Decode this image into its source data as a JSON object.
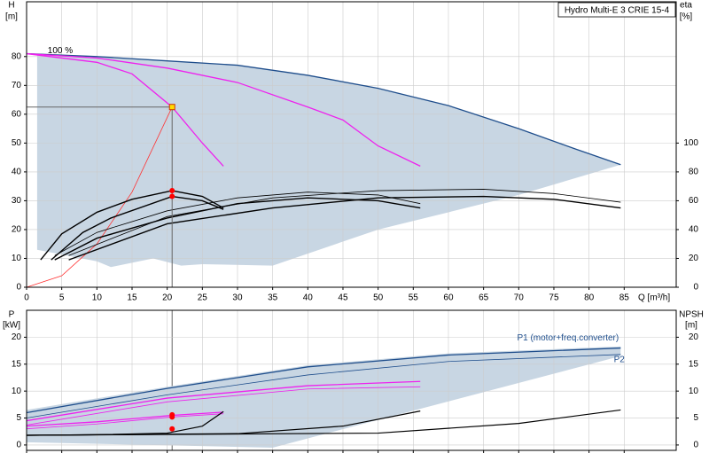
{
  "chart_data": [
    {
      "type": "line",
      "title": "Hydro Multi-E 3 CRIE 15-4",
      "ylabel": "H",
      "yunit": "[m]",
      "y2label": "eta",
      "y2unit": "[%]",
      "xlabel": "Q [m³/h]",
      "xlim": [
        0,
        92.4
      ],
      "ylim": [
        0,
        99
      ],
      "y2lim": [
        0,
        198
      ],
      "xticks": [
        0,
        5,
        10,
        15,
        20,
        25,
        30,
        35,
        40,
        45,
        50,
        55,
        60,
        65,
        70,
        75,
        80,
        85
      ],
      "yticks": [
        0,
        10,
        20,
        30,
        40,
        50,
        60,
        70,
        80
      ],
      "y2ticks": [
        0,
        20,
        40,
        60,
        80,
        100
      ],
      "grid": true,
      "xtick_labels": true,
      "annotations": [
        {
          "text": "100 %",
          "x": 3,
          "y": 82
        }
      ],
      "regions": [
        {
          "color": "#c8d6e3",
          "x": [
            1.5,
            10,
            20,
            30,
            40,
            50,
            60,
            70,
            78,
            84.5,
            70,
            50,
            35,
            25,
            22,
            18,
            12,
            10,
            1.5
          ],
          "values": [
            81,
            80,
            78.5,
            77,
            73.5,
            69,
            63,
            55,
            48,
            42.5,
            32,
            20,
            7.5,
            8,
            7.5,
            10,
            7,
            9,
            13
          ]
        }
      ],
      "series": [
        {
          "color": "#1f4e8c",
          "linewidth": 1.3,
          "x": [
            0,
            10,
            20,
            30,
            40,
            50,
            60,
            70,
            78,
            84.5
          ],
          "values": [
            81,
            80,
            78.5,
            77,
            73.5,
            69,
            63,
            55,
            48,
            42.5
          ]
        },
        {
          "color": "#ee22ee",
          "linewidth": 1.3,
          "x": [
            0,
            10,
            15,
            20.7,
            25,
            28
          ],
          "values": [
            81,
            78,
            74,
            62.5,
            50,
            42
          ]
        },
        {
          "color": "#ee22ee",
          "linewidth": 1.3,
          "x": [
            0,
            10,
            20,
            30,
            40,
            45,
            50,
            56
          ],
          "values": [
            81,
            79.5,
            76,
            71,
            62.5,
            58,
            49,
            42
          ]
        },
        {
          "color": "#ff3333",
          "linewidth": 0.8,
          "x": [
            0,
            5,
            10,
            15,
            20.7
          ],
          "values": [
            0,
            4,
            15,
            33,
            62.5
          ]
        },
        {
          "color": "#000000",
          "linewidth": 1.4,
          "axis": "y2",
          "x": [
            2,
            5,
            10,
            15,
            20.7,
            25,
            28
          ],
          "values": [
            19,
            37,
            52,
            61,
            67,
            63,
            55
          ]
        },
        {
          "color": "#000000",
          "linewidth": 1.4,
          "axis": "y2",
          "x": [
            3.5,
            8,
            12,
            20.7,
            25,
            28
          ],
          "values": [
            19,
            38,
            48,
            63,
            60,
            54
          ]
        },
        {
          "color": "#000000",
          "linewidth": 1.4,
          "axis": "y2",
          "x": [
            4,
            10,
            20,
            30,
            40,
            50,
            56
          ],
          "values": [
            19,
            34,
            48,
            58,
            62,
            60,
            55
          ]
        },
        {
          "color": "#000000",
          "linewidth": 0.8,
          "axis": "y2",
          "x": [
            4,
            10,
            20,
            30,
            40,
            50,
            56
          ],
          "values": [
            22,
            38,
            53,
            62,
            66,
            64,
            58
          ]
        },
        {
          "color": "#000000",
          "linewidth": 1.4,
          "axis": "y2",
          "x": [
            6,
            20,
            35,
            50,
            65,
            75,
            84.5
          ],
          "values": [
            19,
            44,
            55,
            62,
            63,
            61,
            55
          ]
        },
        {
          "color": "#000000",
          "linewidth": 0.8,
          "axis": "y2",
          "x": [
            6,
            20,
            35,
            50,
            65,
            75,
            84.5
          ],
          "values": [
            22,
            49,
            62,
            67,
            68,
            65,
            59
          ]
        }
      ],
      "operating_point": {
        "x": 20.7,
        "y": 62.5,
        "color": "#ffdd00"
      },
      "markers": [
        {
          "x": 20.7,
          "y": 67,
          "axis": "y2",
          "color": "#ff0000"
        },
        {
          "x": 20.7,
          "y": 63,
          "axis": "y2",
          "color": "#ff0000"
        }
      ]
    },
    {
      "type": "line",
      "ylabel": "P",
      "yunit": "[kW]",
      "y2label": "NPSH",
      "y2unit": "[m]",
      "xlim": [
        0,
        92.4
      ],
      "ylim": [
        -1,
        25
      ],
      "y2lim": [
        -1,
        25
      ],
      "xticks": [
        0,
        5,
        10,
        15,
        20,
        25,
        30,
        35,
        40,
        45,
        50,
        55,
        60,
        65,
        70,
        75,
        80,
        85
      ],
      "yticks": [
        0,
        5,
        10,
        15,
        20
      ],
      "y2ticks": [
        0,
        5,
        10,
        15,
        20
      ],
      "grid": true,
      "xtick_labels": false,
      "regions": [
        {
          "color": "#c8d6e3",
          "x": [
            0,
            20,
            40,
            60,
            84.5,
            84.5,
            35,
            0
          ],
          "values": [
            6.5,
            10.8,
            14.8,
            17,
            18.3,
            16.5,
            -0.5,
            0.5
          ]
        }
      ],
      "series": [
        {
          "name": "P1 (motor+freq.converter)",
          "color": "#1f4e8c",
          "linewidth": 1.3,
          "x": [
            0,
            20,
            40,
            60,
            84.5
          ],
          "values": [
            6,
            10.5,
            14.5,
            16.7,
            18
          ],
          "label_x": 77,
          "label_y": 19.8
        },
        {
          "name": "P2",
          "color": "#1f4e8c",
          "linewidth": 0.8,
          "x": [
            0,
            20,
            40,
            60,
            84.5
          ],
          "values": [
            5,
            9.3,
            13,
            15.5,
            16.8
          ],
          "label_x": 84.3,
          "label_y": 15.8
        },
        {
          "color": "#ee22ee",
          "linewidth": 1.3,
          "x": [
            0,
            20,
            40,
            56
          ],
          "values": [
            4.5,
            8.7,
            11,
            11.8
          ]
        },
        {
          "color": "#ee22ee",
          "linewidth": 0.8,
          "x": [
            0,
            20,
            40,
            56
          ],
          "values": [
            3.7,
            8,
            10.4,
            10.8
          ]
        },
        {
          "color": "#ee22ee",
          "linewidth": 1.3,
          "x": [
            0,
            10,
            20.7,
            28
          ],
          "values": [
            3.5,
            4.3,
            5.5,
            6.1
          ]
        },
        {
          "color": "#ee22ee",
          "linewidth": 0.8,
          "x": [
            0,
            10,
            20.7,
            28
          ],
          "values": [
            3,
            3.9,
            5.2,
            5.8
          ]
        },
        {
          "color": "#000000",
          "linewidth": 1.2,
          "axis": "y2",
          "x": [
            0,
            10,
            20,
            25,
            28
          ],
          "values": [
            1.8,
            1.9,
            2.2,
            3.5,
            6.2
          ]
        },
        {
          "color": "#000000",
          "linewidth": 1.2,
          "axis": "y2",
          "x": [
            0,
            30,
            45,
            56
          ],
          "values": [
            1.8,
            2.1,
            3.5,
            6.3
          ]
        },
        {
          "color": "#000000",
          "linewidth": 1.2,
          "axis": "y2",
          "x": [
            0,
            50,
            70,
            84.5
          ],
          "values": [
            1.8,
            2.2,
            4,
            6.5
          ]
        }
      ],
      "markers": [
        {
          "x": 20.7,
          "y": 5.6,
          "color": "#ff0000"
        },
        {
          "x": 20.7,
          "y": 5.2,
          "color": "#ff0000"
        },
        {
          "x": 20.7,
          "y": 3,
          "axis": "y2",
          "color": "#ff0000"
        }
      ]
    }
  ]
}
